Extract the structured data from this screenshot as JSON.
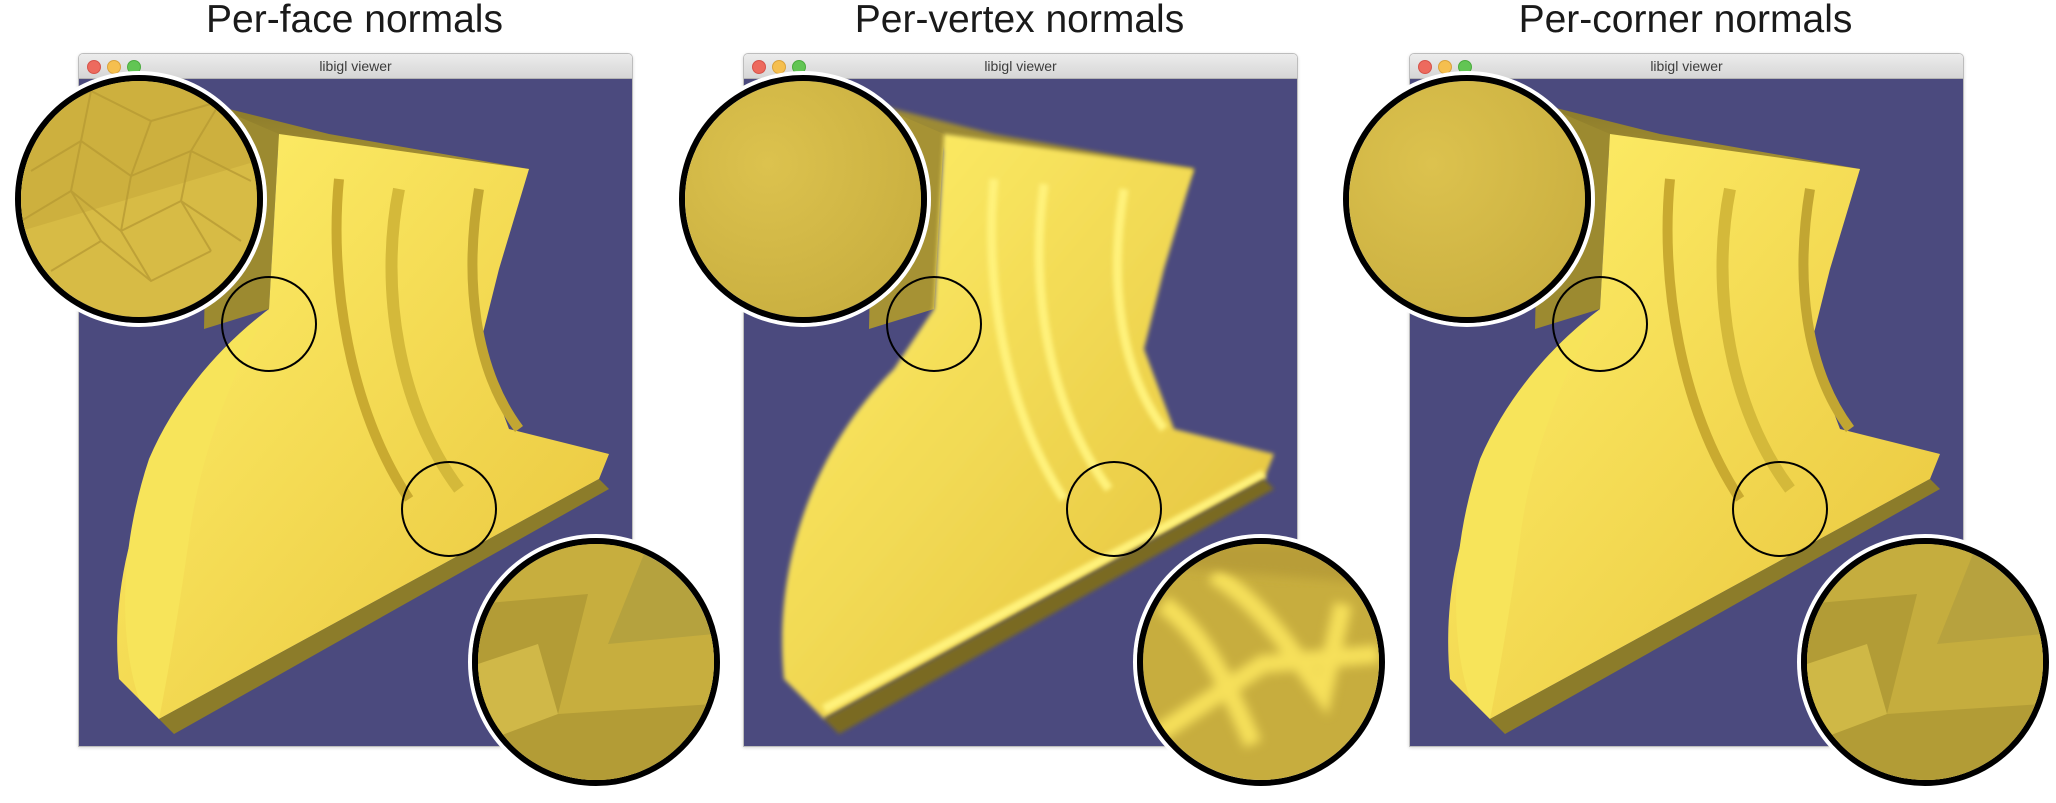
{
  "panels": [
    {
      "title": "Per-face normals",
      "window_title": "libigl viewer"
    },
    {
      "title": "Per-vertex normals",
      "window_title": "libigl viewer"
    },
    {
      "title": "Per-corner normals",
      "window_title": "libigl viewer"
    }
  ],
  "colors": {
    "viewport_background": "#4b4a7e",
    "mesh_yellow": "#f0d24a",
    "mesh_shadow": "#8a7a2a",
    "close": "#ed6a5e",
    "minimize": "#f5bf4f",
    "maximize": "#62c554"
  },
  "icons": {
    "window_buttons": [
      "close-button",
      "minimize-button",
      "maximize-button"
    ],
    "magnifier": "zoom-inset"
  }
}
